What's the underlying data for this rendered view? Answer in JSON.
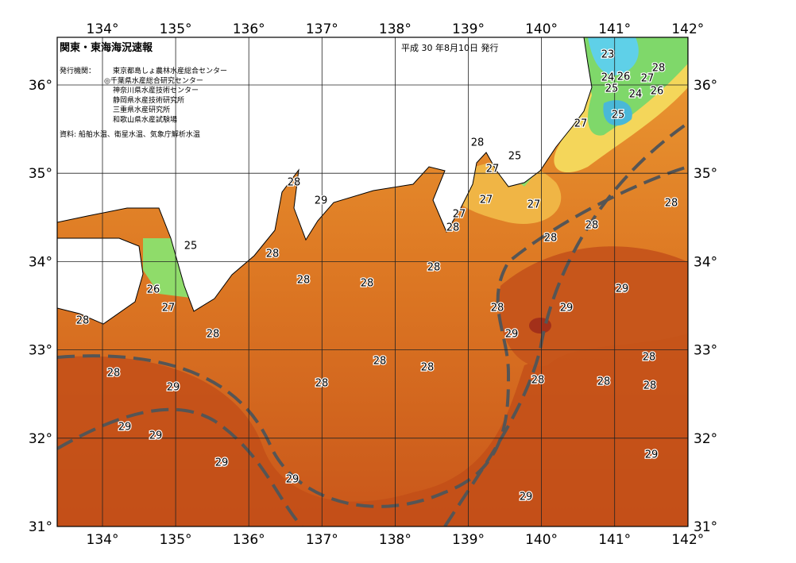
{
  "header": {
    "title": "関東・東海海況速報",
    "date": "平成 30 年8月10日 発行"
  },
  "publishers": {
    "label": "発行機関：",
    "items": [
      "東京都島しょ農林水産総合センター",
      "◎千葉県水産総合研究センター",
      "神奈川県水産技術センター",
      "静岡県水産技術研究所",
      "三重県水産研究所",
      "和歌山県水産試験場"
    ]
  },
  "source": "資料: 船舶水温、衛星水温、気象庁解析水温",
  "axes": {
    "longitude_labels": [
      "134°",
      "135°",
      "136°",
      "137°",
      "138°",
      "139°",
      "140°",
      "141°",
      "142°"
    ],
    "latitude_labels": [
      "36°",
      "35°",
      "34°",
      "33°",
      "32°",
      "31°"
    ]
  },
  "contour_labels": [
    25,
    26,
    27,
    28,
    28,
    28,
    28,
    28,
    29,
    28,
    28,
    28,
    27,
    27,
    28,
    27,
    25,
    27,
    28,
    28,
    28,
    23,
    24,
    26,
    25,
    27,
    28,
    24,
    26,
    25,
    27,
    29,
    29,
    28,
    29,
    28,
    28,
    28,
    28,
    28,
    28,
    28,
    28,
    29,
    29,
    29,
    29,
    29,
    29,
    29
  ]
}
